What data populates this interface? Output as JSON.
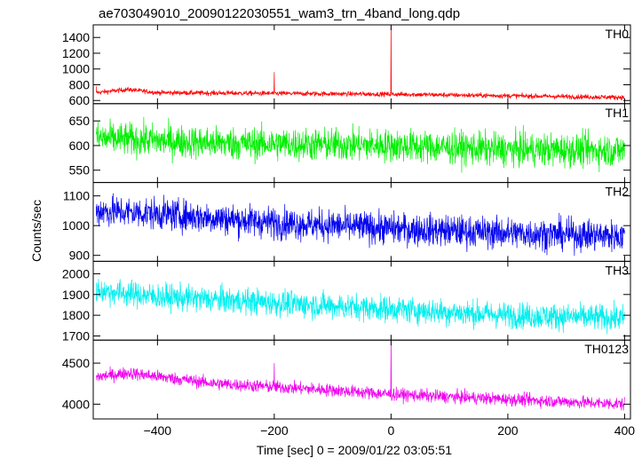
{
  "chart_data": {
    "type": "line",
    "title": "ae703049010_20090122030551_wam3_trn_4band_long.qdp",
    "xlabel": "Time [sec] 0 = 2009/01/22 03:05:51",
    "ylabel": "Counts/sec",
    "xlim": [
      -510,
      410
    ],
    "xticks": [
      -400,
      -200,
      0,
      200,
      400
    ],
    "xtick_labels": [
      "−400",
      "−200",
      "0",
      "200",
      "400"
    ],
    "x_start": -505,
    "x_end": 400,
    "panels": [
      {
        "name": "TH0",
        "color": "#ff0000",
        "ylim": [
          560,
          1560
        ],
        "yticks": [
          600,
          800,
          1000,
          1200,
          1400
        ],
        "trend": [
          [
            -505,
            700
          ],
          [
            -450,
            740
          ],
          [
            -400,
            700
          ],
          [
            -200,
            690
          ],
          [
            0,
            680
          ],
          [
            200,
            660
          ],
          [
            400,
            640
          ]
        ],
        "noise": 22,
        "spikes": [
          [
            -505,
            780
          ],
          [
            -200,
            960
          ],
          [
            0,
            1550
          ]
        ]
      },
      {
        "name": "TH1",
        "color": "#00ee00",
        "ylim": [
          525,
          685
        ],
        "yticks": [
          550,
          600,
          650
        ],
        "trend": [
          [
            -505,
            615
          ],
          [
            -300,
            605
          ],
          [
            0,
            600
          ],
          [
            200,
            592
          ],
          [
            400,
            590
          ]
        ],
        "noise": 24,
        "spikes": []
      },
      {
        "name": "TH2",
        "color": "#0000ee",
        "ylim": [
          880,
          1145
        ],
        "yticks": [
          900,
          1000,
          1100
        ],
        "trend": [
          [
            -505,
            1050
          ],
          [
            -400,
            1040
          ],
          [
            -200,
            1010
          ],
          [
            0,
            990
          ],
          [
            200,
            975
          ],
          [
            400,
            965
          ]
        ],
        "noise": 38,
        "spikes": []
      },
      {
        "name": "TH3",
        "color": "#00eeee",
        "ylim": [
          1680,
          2060
        ],
        "yticks": [
          1700,
          1800,
          1900,
          2000
        ],
        "trend": [
          [
            -505,
            1920
          ],
          [
            -400,
            1890
          ],
          [
            -200,
            1860
          ],
          [
            0,
            1830
          ],
          [
            200,
            1800
          ],
          [
            400,
            1785
          ]
        ],
        "noise": 45,
        "spikes": []
      },
      {
        "name": "TH0123",
        "color": "#ee00ee",
        "ylim": [
          3820,
          4780
        ],
        "yticks": [
          4000,
          4500
        ],
        "trend": [
          [
            -505,
            4330
          ],
          [
            -450,
            4380
          ],
          [
            -300,
            4250
          ],
          [
            -100,
            4170
          ],
          [
            0,
            4120
          ],
          [
            200,
            4060
          ],
          [
            400,
            4000
          ]
        ],
        "noise": 55,
        "spikes": [
          [
            -200,
            4500
          ],
          [
            0,
            4780
          ]
        ]
      }
    ]
  }
}
